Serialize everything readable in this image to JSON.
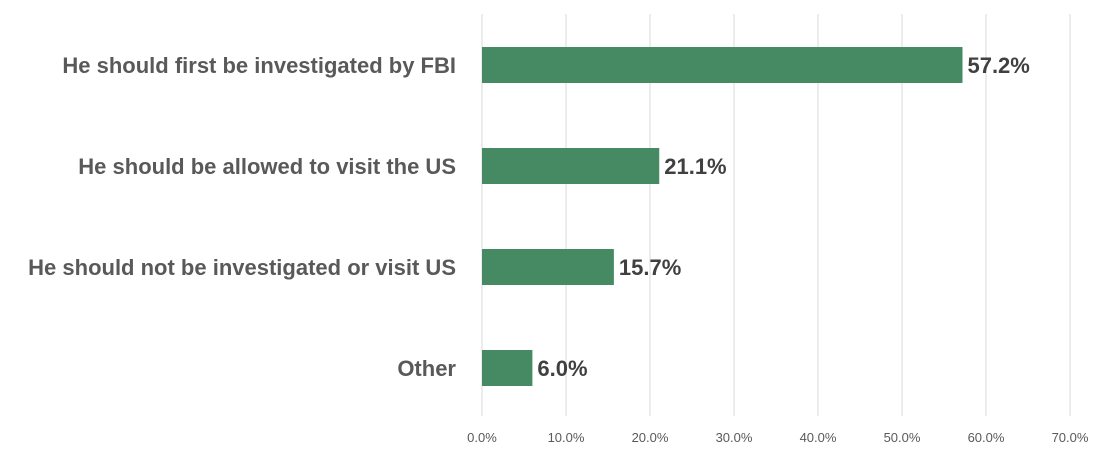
{
  "chart_data": {
    "type": "bar",
    "orientation": "horizontal",
    "categories": [
      "He should first be investigated by FBI",
      "He should be allowed to visit the US",
      "He should not be investigated or visit US",
      "Other"
    ],
    "values": [
      57.2,
      21.1,
      15.7,
      6.0
    ],
    "value_labels": [
      "57.2%",
      "21.1%",
      "15.7%",
      "6.0%"
    ],
    "xlim": [
      0,
      70
    ],
    "xticks": [
      0,
      10,
      20,
      30,
      40,
      50,
      60,
      70
    ],
    "xtick_labels": [
      "0.0%",
      "10.0%",
      "20.0%",
      "30.0%",
      "40.0%",
      "50.0%",
      "60.0%",
      "70.0%"
    ],
    "grid": "vertical",
    "legend": "none",
    "bar_color": "#468a64"
  }
}
